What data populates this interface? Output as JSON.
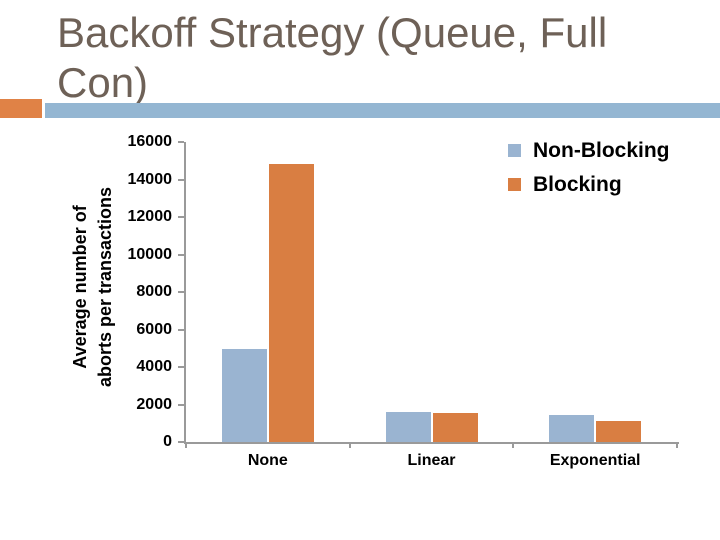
{
  "slide": {
    "title": "Backoff Strategy (Queue, Full Con)"
  },
  "colors": {
    "title_text": "#6E6157",
    "banner_blue": "#94B6D2",
    "banner_orange": "#E08246",
    "axis_line": "#9A9A9A",
    "chart_text": "#000000"
  },
  "chart_data": {
    "type": "bar",
    "title": "",
    "categories": [
      "None",
      "Linear",
      "Exponential"
    ],
    "series": [
      {
        "name": "Non-Blocking",
        "color": "#9AB4D1",
        "values": [
          4950,
          1600,
          1440
        ]
      },
      {
        "name": "Blocking",
        "color": "#D97E42",
        "values": [
          14800,
          1520,
          1120
        ]
      }
    ],
    "xlabel": "",
    "ylabel": "Average number of aborts per transactions",
    "ylabel_lines": [
      "Average number of",
      "aborts per transactions"
    ],
    "ylim": [
      0,
      16000
    ],
    "ytick_step": 2000,
    "grid": false,
    "legend_position": "top-right"
  }
}
